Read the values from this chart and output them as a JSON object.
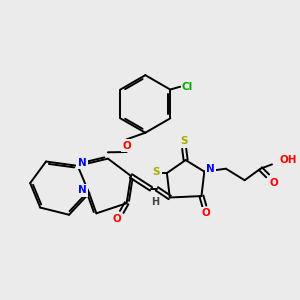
{
  "background_color": "#ebebeb",
  "bond_color": "#000000",
  "bond_width": 1.4,
  "atom_colors": {
    "N": "#0000ff",
    "O": "#ff0000",
    "S": "#aaaa00",
    "Cl": "#00aa00",
    "H": "#444444",
    "C": "#000000"
  },
  "font_size": 7.5
}
